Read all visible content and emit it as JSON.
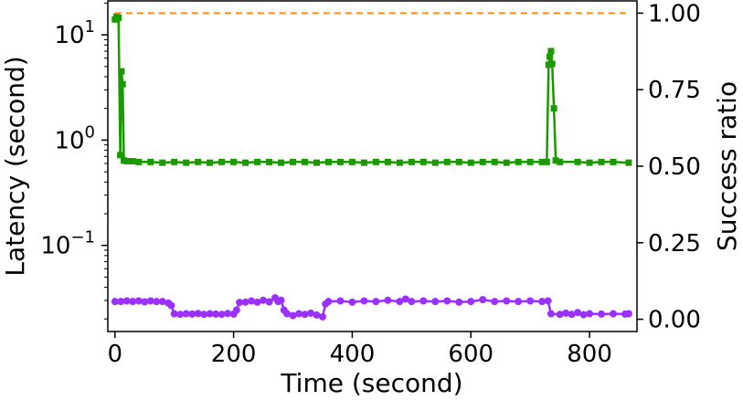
{
  "chart_data": {
    "type": "line",
    "title": "",
    "xlabel": "Time (second)",
    "ylabel_left": "Latency (second)",
    "ylabel_right": "Success ratio",
    "xlim": [
      -12,
      880
    ],
    "ylim_left": [
      0.0152,
      21
    ],
    "yscale_left": "log",
    "ylim_right": [
      -0.04,
      1.04
    ],
    "grid": false,
    "x_ticks": [
      0,
      200,
      400,
      600,
      800
    ],
    "y_left_ticks": [
      {
        "value": 10,
        "base": "10",
        "exp": "1"
      },
      {
        "value": 1,
        "base": "10",
        "exp": "0"
      },
      {
        "value": 0.1,
        "base": "10",
        "exp": "−1"
      }
    ],
    "y_right_ticks": [
      "0.00",
      "0.25",
      "0.50",
      "0.75",
      "1.00"
    ],
    "series": [
      {
        "axis": "left",
        "color": "#1a9a00",
        "marker": "square",
        "points": [
          [
            0,
            14
          ],
          [
            3,
            15
          ],
          [
            6,
            14.5
          ],
          [
            9,
            0.72
          ],
          [
            11,
            4.5
          ],
          [
            13,
            3.4
          ],
          [
            15,
            0.64
          ],
          [
            20,
            0.63
          ],
          [
            30,
            0.63
          ],
          [
            40,
            0.62
          ],
          [
            60,
            0.62
          ],
          [
            80,
            0.61
          ],
          [
            100,
            0.62
          ],
          [
            120,
            0.61
          ],
          [
            140,
            0.62
          ],
          [
            160,
            0.61
          ],
          [
            180,
            0.62
          ],
          [
            200,
            0.62
          ],
          [
            220,
            0.61
          ],
          [
            240,
            0.62
          ],
          [
            260,
            0.62
          ],
          [
            280,
            0.61
          ],
          [
            300,
            0.62
          ],
          [
            320,
            0.62
          ],
          [
            340,
            0.61
          ],
          [
            360,
            0.62
          ],
          [
            380,
            0.62
          ],
          [
            400,
            0.62
          ],
          [
            420,
            0.61
          ],
          [
            440,
            0.62
          ],
          [
            460,
            0.62
          ],
          [
            480,
            0.61
          ],
          [
            500,
            0.62
          ],
          [
            520,
            0.62
          ],
          [
            540,
            0.61
          ],
          [
            560,
            0.62
          ],
          [
            580,
            0.62
          ],
          [
            600,
            0.61
          ],
          [
            620,
            0.62
          ],
          [
            640,
            0.62
          ],
          [
            660,
            0.61
          ],
          [
            680,
            0.62
          ],
          [
            700,
            0.62
          ],
          [
            720,
            0.62
          ],
          [
            728,
            0.62
          ],
          [
            731,
            5.2
          ],
          [
            733,
            6.2
          ],
          [
            735,
            7.0
          ],
          [
            737,
            5.3
          ],
          [
            740,
            2.0
          ],
          [
            743,
            0.64
          ],
          [
            750,
            0.62
          ],
          [
            780,
            0.62
          ],
          [
            800,
            0.61
          ],
          [
            820,
            0.62
          ],
          [
            840,
            0.62
          ],
          [
            866,
            0.61
          ]
        ]
      },
      {
        "axis": "right",
        "color": "#9b30ff",
        "marker": "circle",
        "points": [
          [
            0,
            0.058
          ],
          [
            10,
            0.058
          ],
          [
            20,
            0.06
          ],
          [
            30,
            0.058
          ],
          [
            40,
            0.06
          ],
          [
            50,
            0.057
          ],
          [
            60,
            0.06
          ],
          [
            70,
            0.058
          ],
          [
            80,
            0.058
          ],
          [
            90,
            0.053
          ],
          [
            95,
            0.045
          ],
          [
            100,
            0.018
          ],
          [
            110,
            0.016
          ],
          [
            120,
            0.018
          ],
          [
            130,
            0.017
          ],
          [
            140,
            0.019
          ],
          [
            150,
            0.016
          ],
          [
            160,
            0.018
          ],
          [
            170,
            0.017
          ],
          [
            180,
            0.016
          ],
          [
            190,
            0.019
          ],
          [
            200,
            0.017
          ],
          [
            205,
            0.03
          ],
          [
            210,
            0.055
          ],
          [
            220,
            0.056
          ],
          [
            230,
            0.06
          ],
          [
            240,
            0.056
          ],
          [
            250,
            0.062
          ],
          [
            260,
            0.057
          ],
          [
            270,
            0.07
          ],
          [
            275,
            0.058
          ],
          [
            280,
            0.062
          ],
          [
            285,
            0.03
          ],
          [
            290,
            0.018
          ],
          [
            300,
            0.012
          ],
          [
            310,
            0.018
          ],
          [
            320,
            0.016
          ],
          [
            330,
            0.02
          ],
          [
            340,
            0.014
          ],
          [
            350,
            0.008
          ],
          [
            355,
            0.05
          ],
          [
            360,
            0.058
          ],
          [
            380,
            0.06
          ],
          [
            400,
            0.056
          ],
          [
            420,
            0.06
          ],
          [
            440,
            0.058
          ],
          [
            460,
            0.062
          ],
          [
            480,
            0.058
          ],
          [
            490,
            0.066
          ],
          [
            500,
            0.058
          ],
          [
            520,
            0.06
          ],
          [
            540,
            0.058
          ],
          [
            560,
            0.06
          ],
          [
            580,
            0.056
          ],
          [
            600,
            0.058
          ],
          [
            620,
            0.064
          ],
          [
            640,
            0.058
          ],
          [
            660,
            0.06
          ],
          [
            680,
            0.058
          ],
          [
            700,
            0.06
          ],
          [
            720,
            0.058
          ],
          [
            730,
            0.06
          ],
          [
            735,
            0.018
          ],
          [
            750,
            0.016
          ],
          [
            760,
            0.02
          ],
          [
            770,
            0.016
          ],
          [
            780,
            0.022
          ],
          [
            790,
            0.015
          ],
          [
            800,
            0.018
          ],
          [
            820,
            0.017
          ],
          [
            840,
            0.018
          ],
          [
            860,
            0.017
          ],
          [
            866,
            0.018
          ]
        ]
      },
      {
        "axis": "right",
        "color": "#ff8c1a",
        "style": "dashed",
        "points": [
          [
            0,
            1.0
          ],
          [
            866,
            1.0
          ]
        ]
      }
    ]
  }
}
